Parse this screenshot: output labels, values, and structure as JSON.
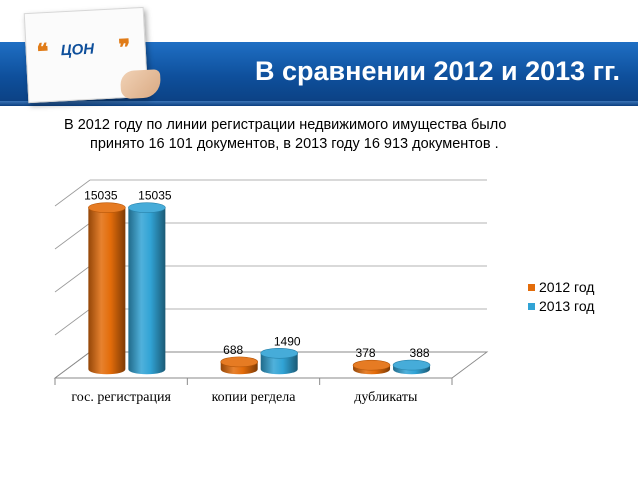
{
  "slide": {
    "title": "В сравнении 2012 и 2013 гг.",
    "logo_text": "ЦОН",
    "intro_line1": "В 2012 году по линии регистрации недвижимого имущества было",
    "intro_line2": "принято 16 101 документов, в 2013 году 16 913 документов ."
  },
  "colors": {
    "header": "#0e4f9b",
    "accent": "#e07b17",
    "series_2012": "#e36c0a",
    "series_2013": "#31a3d5"
  },
  "chart_data": {
    "type": "bar",
    "style": "3d-cylinder",
    "categories": [
      "гос. регистрация",
      "копии регдела",
      "дубликаты"
    ],
    "series": [
      {
        "name": "2012 год",
        "values": [
          15035,
          688,
          378
        ],
        "color": "#e36c0a",
        "labels": [
          "15035",
          "688",
          "378"
        ]
      },
      {
        "name": "2013 год",
        "values": [
          15035,
          1490,
          388
        ],
        "color": "#31a3d5",
        "labels": [
          "15035",
          "1490",
          "388"
        ]
      }
    ],
    "ylim": [
      0,
      16000
    ],
    "grid": true,
    "legend": "right"
  }
}
